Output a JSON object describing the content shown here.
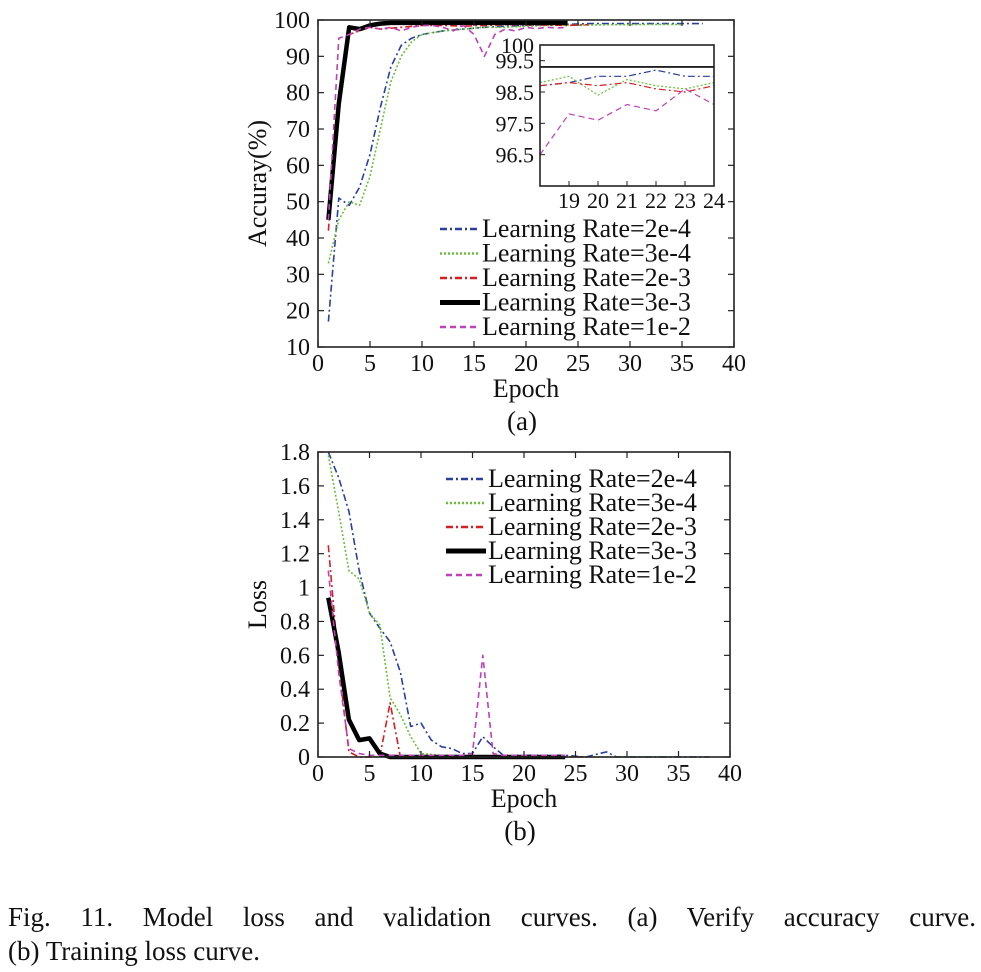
{
  "chart_data": [
    {
      "type": "line",
      "panel_label": "(a)",
      "xlabel": "Epoch",
      "ylabel": "Accuray(%)",
      "xlim": [
        0,
        40
      ],
      "ylim": [
        10,
        100
      ],
      "xticks": [
        0,
        5,
        10,
        15,
        20,
        25,
        30,
        35,
        40
      ],
      "yticks": [
        10,
        20,
        30,
        40,
        50,
        60,
        70,
        80,
        90,
        100
      ],
      "legend_position": "bottom-right",
      "series": [
        {
          "name": "Learning Rate=2e-4",
          "color": "#2a3f9e",
          "style": "dashdot",
          "x": [
            1,
            2,
            3,
            4,
            5,
            6,
            7,
            8,
            9,
            10,
            12,
            14,
            16,
            18,
            20,
            22,
            24,
            26,
            28,
            30,
            32,
            34,
            36,
            37
          ],
          "y": [
            17,
            51,
            49,
            54,
            63,
            76,
            87,
            93,
            95,
            96,
            97,
            97.5,
            98,
            98.3,
            98.5,
            98.7,
            98.8,
            99,
            99,
            99,
            99,
            99,
            99,
            99
          ]
        },
        {
          "name": "Learning Rate=3e-4",
          "color": "#6abf3a",
          "style": "dotted",
          "x": [
            1,
            2,
            3,
            4,
            5,
            6,
            7,
            8,
            9,
            10,
            12,
            14,
            16,
            18,
            20,
            22,
            24,
            26,
            28,
            30,
            32,
            34,
            35
          ],
          "y": [
            33,
            45,
            50,
            49,
            57,
            70,
            83,
            90,
            94,
            96,
            97,
            97.5,
            98,
            98,
            98.3,
            98.5,
            98.6,
            98.6,
            98.7,
            98.7,
            98.8,
            98.8,
            98.8
          ]
        },
        {
          "name": "Learning Rate=2e-3",
          "color": "#d42020",
          "style": "dashdot",
          "x": [
            1,
            2,
            3,
            4,
            5,
            6,
            8,
            10,
            12,
            14,
            16,
            18,
            20,
            22,
            24,
            26
          ],
          "y": [
            42,
            80,
            96,
            97,
            98,
            97.5,
            98,
            98.5,
            98.5,
            98.3,
            98.5,
            98.7,
            98.7,
            98.6,
            98.5,
            98.7
          ]
        },
        {
          "name": "Learning Rate=3e-3",
          "color": "#000000",
          "style": "solid",
          "x": [
            1,
            2,
            3,
            4,
            5,
            6,
            7,
            8,
            10,
            12,
            14,
            16,
            18,
            20,
            22,
            24
          ],
          "y": [
            45,
            77,
            98,
            97.5,
            98.5,
            99,
            99.2,
            99.2,
            99.2,
            99.2,
            99.2,
            99.2,
            99.2,
            99.2,
            99.2,
            99.2
          ]
        },
        {
          "name": "Learning Rate=1e-2",
          "color": "#c040b8",
          "style": "dashed",
          "x": [
            1,
            2,
            3,
            4,
            5,
            6,
            7,
            8,
            9,
            10,
            11,
            12,
            13,
            14,
            15,
            16,
            17,
            18,
            19,
            20,
            21,
            22,
            23,
            24
          ],
          "y": [
            45,
            95,
            96,
            97.5,
            98,
            97.5,
            98,
            97,
            98,
            98.5,
            98.5,
            98,
            97,
            98.5,
            96,
            90,
            96,
            97.5,
            97,
            98,
            97.6,
            98,
            97.8,
            98
          ]
        }
      ],
      "inset": {
        "xlim": [
          18,
          24
        ],
        "ylim": [
          95.5,
          100
        ],
        "xticks": [
          19,
          20,
          21,
          22,
          23,
          24
        ],
        "ytick_labels": [
          "100",
          "99.5",
          "98.5",
          "97.5",
          "96.5"
        ],
        "ytick_values": [
          100,
          99.5,
          98.5,
          97.5,
          96.5
        ],
        "series": [
          {
            "name": "Learning Rate=2e-4",
            "color": "#2a3f9e",
            "style": "dashdot",
            "x": [
              18,
              19,
              20,
              21,
              22,
              23,
              24
            ],
            "y": [
              98.7,
              98.8,
              99,
              99,
              99.2,
              99,
              99
            ]
          },
          {
            "name": "Learning Rate=3e-4",
            "color": "#6abf3a",
            "style": "dotted",
            "x": [
              18,
              19,
              20,
              21,
              22,
              23,
              24
            ],
            "y": [
              98.8,
              99,
              98.4,
              98.9,
              98.7,
              98.6,
              98.8
            ]
          },
          {
            "name": "Learning Rate=2e-3",
            "color": "#d42020",
            "style": "dashdot",
            "x": [
              18,
              19,
              20,
              21,
              22,
              23,
              24
            ],
            "y": [
              98.7,
              98.8,
              98.7,
              98.8,
              98.6,
              98.5,
              98.7
            ]
          },
          {
            "name": "Learning Rate=3e-3",
            "color": "#000000",
            "style": "solid",
            "x": [
              18,
              19,
              20,
              21,
              22,
              23,
              24
            ],
            "y": [
              99.3,
              99.3,
              99.3,
              99.3,
              99.3,
              99.3,
              99.3
            ]
          },
          {
            "name": "Learning Rate=1e-2",
            "color": "#c040b8",
            "style": "dashed",
            "x": [
              18,
              19,
              20,
              21,
              22,
              23,
              24
            ],
            "y": [
              96.5,
              97.8,
              97.6,
              98.1,
              97.9,
              98.6,
              98.1
            ]
          }
        ]
      }
    },
    {
      "type": "line",
      "panel_label": "(b)",
      "xlabel": "Epoch",
      "ylabel": "Loss",
      "xlim": [
        0,
        40
      ],
      "ylim": [
        0,
        1.8
      ],
      "xticks": [
        0,
        5,
        10,
        15,
        20,
        25,
        30,
        35,
        40
      ],
      "yticks": [
        0,
        0.2,
        0.4,
        0.6,
        0.8,
        1,
        1.2,
        1.4,
        1.6,
        1.8
      ],
      "ytick_labels": [
        "0",
        "0.2",
        "0.4",
        "0.6",
        "0.8",
        "1",
        "1.2",
        "1.4",
        "1.6",
        "1.8"
      ],
      "legend_position": "top-right",
      "series": [
        {
          "name": "Learning Rate=2e-4",
          "color": "#2a3f9e",
          "style": "dashdot",
          "x": [
            1,
            2,
            3,
            4,
            5,
            6,
            7,
            8,
            9,
            10,
            11,
            12,
            13,
            14,
            15,
            16,
            17,
            18,
            20,
            22,
            24,
            26,
            28,
            29,
            30,
            32,
            34,
            36,
            38
          ],
          "y": [
            1.8,
            1.65,
            1.45,
            1.1,
            0.85,
            0.76,
            0.68,
            0.5,
            0.18,
            0.2,
            0.1,
            0.06,
            0.05,
            0.02,
            0.02,
            0.12,
            0.06,
            0.01,
            0.01,
            0.01,
            0.01,
            0.0,
            0.03,
            0.0,
            0.0,
            0.0,
            0.0,
            0.0,
            0.0
          ]
        },
        {
          "name": "Learning Rate=3e-4",
          "color": "#6abf3a",
          "style": "dotted",
          "x": [
            1,
            2,
            3,
            4,
            5,
            6,
            7,
            8,
            9,
            10,
            12,
            14,
            16,
            18,
            20,
            22,
            24,
            26,
            28,
            30,
            32,
            34,
            35
          ],
          "y": [
            1.78,
            1.45,
            1.1,
            1.05,
            0.85,
            0.78,
            0.35,
            0.25,
            0.12,
            0.02,
            0.01,
            0.01,
            0.0,
            0.0,
            0.0,
            0.0,
            0.0,
            0.0,
            0.0,
            0.0,
            0.0,
            0.0,
            0.0
          ]
        },
        {
          "name": "Learning Rate=2e-3",
          "color": "#d42020",
          "style": "dashdot",
          "x": [
            1,
            2,
            3,
            4,
            5,
            6,
            7,
            8,
            9,
            10,
            12,
            14,
            16,
            18,
            20,
            22,
            24,
            26
          ],
          "y": [
            1.25,
            0.55,
            0.03,
            0.0,
            0.0,
            0.0,
            0.32,
            0.0,
            0.0,
            0.0,
            0.0,
            0.0,
            0.0,
            0.0,
            0.0,
            0.0,
            0.0,
            0.0
          ]
        },
        {
          "name": "Learning Rate=3e-3",
          "color": "#000000",
          "style": "solid",
          "x": [
            1,
            2,
            3,
            4,
            5,
            6,
            7,
            8,
            10,
            12,
            14,
            16,
            18,
            20,
            22,
            24
          ],
          "y": [
            0.94,
            0.62,
            0.22,
            0.1,
            0.11,
            0.02,
            0.0,
            0.0,
            0.0,
            0.0,
            0.0,
            0.0,
            0.0,
            0.0,
            0.0,
            0.0
          ]
        },
        {
          "name": "Learning Rate=1e-2",
          "color": "#c040b8",
          "style": "dashed",
          "x": [
            1,
            2,
            3,
            4,
            5,
            6,
            8,
            10,
            12,
            14,
            15,
            16,
            17,
            18,
            20,
            22,
            24
          ],
          "y": [
            1.1,
            0.5,
            0.05,
            0.02,
            0.01,
            0.01,
            0.01,
            0.01,
            0.01,
            0.01,
            0.02,
            0.6,
            0.02,
            0.01,
            0.01,
            0.01,
            0.01
          ]
        }
      ]
    }
  ],
  "caption": {
    "line1": "Fig. 11.  Model loss and validation curves. (a) Verify accuracy curve.",
    "line2": "(b) Training loss curve."
  }
}
